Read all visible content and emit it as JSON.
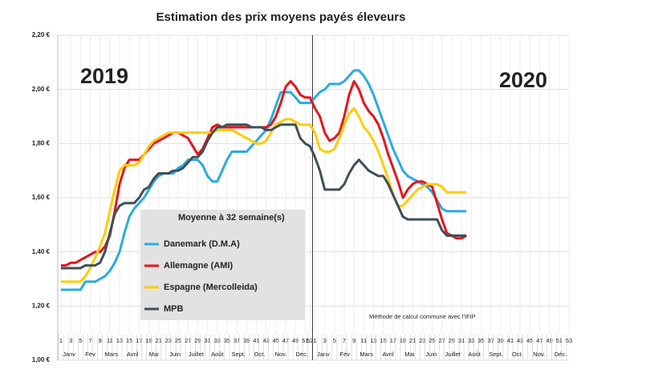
{
  "chart_data": {
    "type": "line",
    "title": "Estimation des prix moyens payés éleveurs",
    "annotations": {
      "year_left": "2019",
      "year_right": "2020",
      "legend_title": "Moyenne à  32 semaine(s)",
      "note": "Méthode de calcul commune avec l'IFIP"
    },
    "months": [
      "Janv",
      "Fév",
      "Mars",
      "Avril",
      "Mai",
      "Juin",
      "Juillet",
      "Août",
      "Sept.",
      "Oct.",
      "Nov.",
      "Déc.",
      "Janv",
      "Fév",
      "Mars",
      "Avril",
      "Mai",
      "Juin",
      "Juillet",
      "Août",
      "Sept.",
      "Oct.",
      "Nov.",
      "Déc."
    ],
    "categories": [
      "1",
      null,
      "3",
      null,
      "5",
      null,
      "7",
      null,
      "9",
      null,
      "11",
      null,
      "13",
      null,
      "15",
      null,
      "17",
      null,
      "19",
      null,
      "21",
      null,
      "23",
      null,
      "25",
      null,
      "27",
      null,
      "29",
      null,
      "31",
      null,
      "33",
      null,
      "35",
      null,
      "37",
      null,
      "39",
      null,
      "41",
      null,
      "43",
      null,
      "45",
      null,
      "47",
      null,
      "49",
      null,
      "51",
      "52",
      "1",
      null,
      "3",
      null,
      "5",
      null,
      "7",
      null,
      "9",
      null,
      "11",
      null,
      "13",
      null,
      "15",
      null,
      "17",
      null,
      "19",
      null,
      "21",
      null,
      "23",
      null,
      "25",
      null,
      "27",
      null,
      "29",
      null,
      "31",
      null,
      "33",
      null,
      "35",
      null,
      "37",
      null,
      "39",
      null,
      "41",
      null,
      "43",
      null,
      "45",
      null,
      "47",
      null,
      "49",
      null,
      "51",
      null,
      "53"
    ],
    "ylim": [
      1.0,
      2.2
    ],
    "yticks": [
      {
        "value": 1.0,
        "label": "1,00 €"
      },
      {
        "value": 1.2,
        "label": "1,20 €"
      },
      {
        "value": 1.4,
        "label": "1,40 €"
      },
      {
        "value": 1.6,
        "label": "1,60 €"
      },
      {
        "value": 1.8,
        "label": "1,80 €"
      },
      {
        "value": 2.0,
        "label": "2,00 €"
      },
      {
        "value": 2.2,
        "label": "2,20 €"
      }
    ],
    "grid": true,
    "series": [
      {
        "name": "Danemark (D.M.A)",
        "color": "#29abe2",
        "values": [
          1.26,
          1.26,
          1.26,
          1.26,
          1.26,
          1.29,
          1.29,
          1.29,
          1.3,
          1.31,
          1.33,
          1.36,
          1.4,
          1.47,
          1.53,
          1.56,
          1.58,
          1.6,
          1.63,
          1.66,
          1.68,
          1.69,
          1.69,
          1.69,
          1.71,
          1.72,
          1.74,
          1.74,
          1.74,
          1.72,
          1.68,
          1.66,
          1.66,
          1.7,
          1.74,
          1.77,
          1.77,
          1.77,
          1.77,
          1.79,
          1.81,
          1.83,
          1.85,
          1.89,
          1.94,
          1.99,
          1.99,
          1.99,
          1.97,
          1.95,
          1.95,
          1.95,
          1.97,
          1.99,
          2.0,
          2.02,
          2.02,
          2.02,
          2.03,
          2.05,
          2.07,
          2.07,
          2.05,
          2.02,
          1.98,
          1.93,
          1.88,
          1.83,
          1.78,
          1.74,
          1.7,
          1.68,
          1.67,
          1.66,
          1.65,
          1.64,
          1.62,
          1.59,
          1.56,
          1.55,
          1.55,
          1.55,
          1.55,
          1.55,
          null,
          null,
          null,
          null,
          null,
          null,
          null,
          null,
          null,
          null,
          null,
          null,
          null,
          null,
          null,
          null,
          null,
          null,
          null,
          null,
          null
        ]
      },
      {
        "name": "Allemagne (AMI)",
        "color": "#e8131b",
        "values": [
          1.35,
          1.35,
          1.36,
          1.36,
          1.37,
          1.38,
          1.39,
          1.4,
          1.4,
          1.42,
          1.46,
          1.55,
          1.65,
          1.71,
          1.74,
          1.74,
          1.74,
          1.76,
          1.78,
          1.8,
          1.81,
          1.82,
          1.83,
          1.84,
          1.84,
          1.83,
          1.82,
          1.79,
          1.76,
          1.78,
          1.82,
          1.86,
          1.87,
          1.86,
          1.86,
          1.86,
          1.86,
          1.86,
          1.86,
          1.86,
          1.86,
          1.86,
          1.86,
          1.87,
          1.9,
          1.95,
          2.01,
          2.03,
          2.01,
          1.98,
          1.97,
          1.97,
          1.93,
          1.9,
          1.84,
          1.81,
          1.82,
          1.84,
          1.9,
          1.98,
          2.03,
          2.0,
          1.95,
          1.92,
          1.9,
          1.87,
          1.82,
          1.76,
          1.71,
          1.66,
          1.6,
          1.63,
          1.65,
          1.66,
          1.66,
          1.65,
          1.64,
          1.58,
          1.52,
          1.47,
          1.46,
          1.45,
          1.45,
          1.46,
          null,
          null,
          null,
          null,
          null,
          null,
          null,
          null,
          null,
          null,
          null,
          null,
          null,
          null,
          null,
          null,
          null,
          null,
          null,
          null,
          null
        ]
      },
      {
        "name": "Espagne (Mercolleida)",
        "color": "#ffcc00",
        "values": [
          1.29,
          1.29,
          1.29,
          1.29,
          1.29,
          1.31,
          1.34,
          1.38,
          1.42,
          1.47,
          1.55,
          1.63,
          1.7,
          1.72,
          1.72,
          1.72,
          1.73,
          1.76,
          1.79,
          1.81,
          1.82,
          1.83,
          1.84,
          1.84,
          1.84,
          1.84,
          1.84,
          1.84,
          1.84,
          1.84,
          1.84,
          1.84,
          1.85,
          1.85,
          1.85,
          1.85,
          1.84,
          1.83,
          1.82,
          1.81,
          1.8,
          1.8,
          1.81,
          1.84,
          1.87,
          1.88,
          1.89,
          1.89,
          1.88,
          1.87,
          1.87,
          1.87,
          1.84,
          1.78,
          1.77,
          1.77,
          1.78,
          1.82,
          1.87,
          1.91,
          1.93,
          1.9,
          1.86,
          1.84,
          1.81,
          1.77,
          1.72,
          1.67,
          1.61,
          1.57,
          1.57,
          1.59,
          1.61,
          1.63,
          1.64,
          1.65,
          1.65,
          1.65,
          1.64,
          1.62,
          1.62,
          1.62,
          1.62,
          1.62,
          null,
          null,
          null,
          null,
          null,
          null,
          null,
          null,
          null,
          null,
          null,
          null,
          null,
          null,
          null,
          null,
          null,
          null,
          null,
          null,
          null
        ]
      },
      {
        "name": "MPB",
        "color": "#3d5055",
        "values": [
          1.34,
          1.34,
          1.34,
          1.34,
          1.34,
          1.35,
          1.35,
          1.35,
          1.36,
          1.4,
          1.47,
          1.54,
          1.57,
          1.58,
          1.58,
          1.58,
          1.6,
          1.63,
          1.64,
          1.67,
          1.69,
          1.69,
          1.69,
          1.7,
          1.7,
          1.71,
          1.73,
          1.75,
          1.75,
          1.77,
          1.81,
          1.84,
          1.86,
          1.86,
          1.87,
          1.87,
          1.87,
          1.87,
          1.87,
          1.86,
          1.86,
          1.86,
          1.85,
          1.85,
          1.86,
          1.87,
          1.87,
          1.87,
          1.87,
          1.82,
          1.8,
          1.79,
          1.75,
          1.7,
          1.63,
          1.63,
          1.63,
          1.63,
          1.65,
          1.69,
          1.72,
          1.74,
          1.72,
          1.7,
          1.69,
          1.68,
          1.68,
          1.65,
          1.61,
          1.57,
          1.53,
          1.52,
          1.52,
          1.52,
          1.52,
          1.52,
          1.52,
          1.52,
          1.48,
          1.46,
          1.46,
          1.46,
          1.46,
          1.46,
          null,
          null,
          null,
          null,
          null,
          null,
          null,
          null,
          null,
          null,
          null,
          null,
          null,
          null,
          null,
          null,
          null,
          null,
          null,
          null,
          null
        ]
      }
    ]
  }
}
